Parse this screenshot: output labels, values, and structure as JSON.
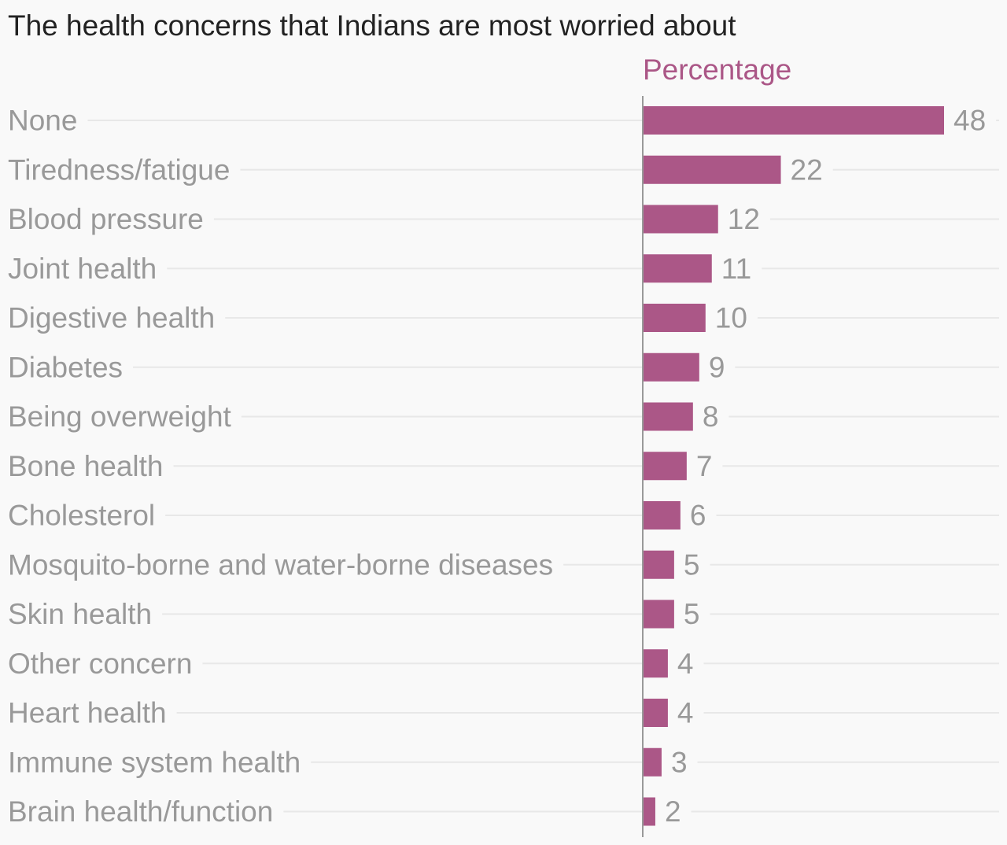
{
  "colors": {
    "bar": "#ab5787",
    "series_label": "#ab5787",
    "gridline": "#e8e8e8",
    "axis": "#999999"
  },
  "chart_data": {
    "type": "bar",
    "orientation": "horizontal",
    "title": "The health concerns that Indians are most worried about",
    "series": [
      {
        "name": "Percentage",
        "values": [
          48,
          22,
          12,
          11,
          10,
          9,
          8,
          7,
          6,
          5,
          5,
          4,
          4,
          3,
          2
        ]
      }
    ],
    "categories": [
      "None",
      "Tiredness/fatigue",
      "Blood pressure",
      "Joint health",
      "Digestive health",
      "Diabetes",
      "Being overweight",
      "Bone health",
      "Cholesterol",
      "Mosquito-borne and water-borne diseases",
      "Skin health",
      "Other concern",
      "Heart health",
      "Immune system health",
      "Brain health/function"
    ],
    "xlim": [
      0,
      48
    ],
    "grid": true,
    "data_labels": true
  }
}
